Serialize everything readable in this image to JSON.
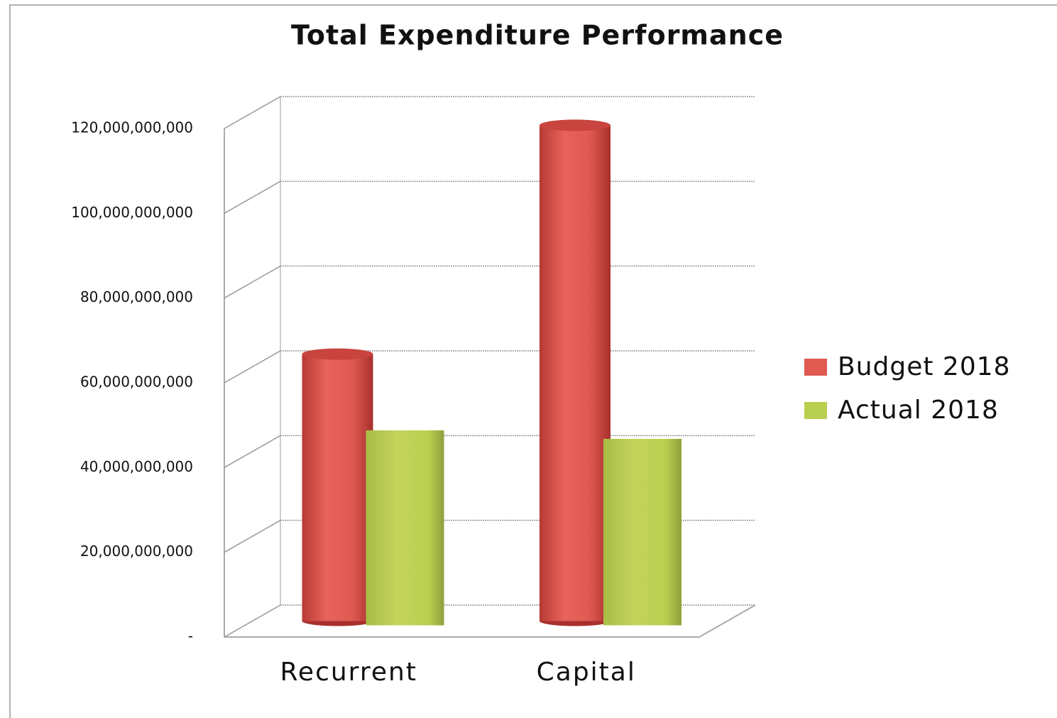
{
  "chart_data": {
    "type": "bar3d",
    "title": "Total Expenditure Performance",
    "categories": [
      "Recurrent",
      "Capital"
    ],
    "series": [
      {
        "name": "Budget 2018",
        "color": "#e05a52",
        "values": [
          63000000000,
          117000000000
        ]
      },
      {
        "name": "Actual 2018",
        "color": "#b9cf4f",
        "values": [
          45000000000,
          43000000000
        ]
      }
    ],
    "ylim": [
      0,
      120000000000
    ],
    "yticks": [
      {
        "value": 0,
        "label": "-"
      },
      {
        "value": 20000000000,
        "label": "20,000,000,000"
      },
      {
        "value": 40000000000,
        "label": "40,000,000,000"
      },
      {
        "value": 60000000000,
        "label": "60,000,000,000"
      },
      {
        "value": 80000000000,
        "label": "80,000,000,000"
      },
      {
        "value": 100000000000,
        "label": "100,000,000,000"
      },
      {
        "value": 120000000000,
        "label": "120,000,000,000"
      }
    ],
    "grid": true,
    "legend": "right"
  }
}
